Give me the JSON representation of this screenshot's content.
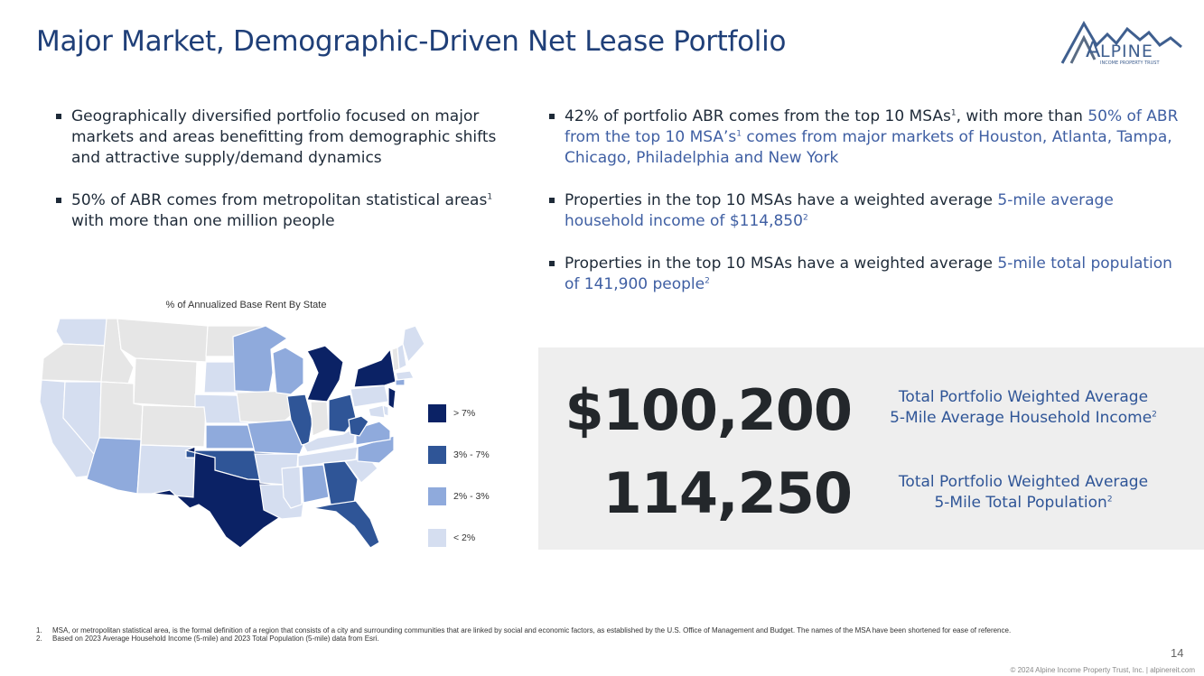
{
  "title": "Major Market, Demographic-Driven Net Lease Portfolio",
  "logo": {
    "mark": "A",
    "name": "LPINE",
    "tagline": "INCOME PROPERTY TRUST"
  },
  "left_bullets": [
    {
      "text": "Geographically diversified portfolio focused on major markets and areas benefitting from demographic shifts and attractive supply/demand dynamics"
    },
    {
      "pre": "50% of ABR comes from metropolitan statistical areas",
      "sup": "1",
      "post": " with more than one million people"
    }
  ],
  "right_bullets": [
    {
      "pre": "42% of portfolio ABR comes from the top 10 MSAs",
      "sup": "1",
      "mid": ", with more than ",
      "hl1": "50% of ABR from the top 10 MSA’s",
      "sup2": "1",
      "hl2": " comes from major markets of Houston, Atlanta, Tampa, Chicago, Philadelphia and New York"
    },
    {
      "pre": "Properties in the top 10 MSAs have a weighted average ",
      "hl": "5-mile average household income of $114,850",
      "sup": "2"
    },
    {
      "pre": "Properties in the top 10 MSAs have a weighted average ",
      "hl": "5-mile total population of 141,900 people",
      "sup": "2"
    }
  ],
  "map": {
    "title": "% of Annualized Base Rent By State",
    "legend": [
      {
        "label": "> 7%",
        "color": "#0b2265"
      },
      {
        "label": "3% - 7%",
        "color": "#2f5597"
      },
      {
        "label": "2% - 3%",
        "color": "#8faadc"
      },
      {
        "label": "< 2%",
        "color": "#d5def0"
      }
    ],
    "no_data_color": "#e6e6e6"
  },
  "stats": [
    {
      "value": "$100,200",
      "label_line1": "Total Portfolio Weighted Average",
      "label_line2": "5-Mile Average Household Income",
      "sup": "2"
    },
    {
      "value": "114,250",
      "label_line1": "Total Portfolio Weighted Average",
      "label_line2": "5-Mile Total Population",
      "sup": "2"
    }
  ],
  "footnotes": [
    {
      "num": "1.",
      "text": "MSA, or metropolitan statistical area, is the formal definition of a region that consists of a city and surrounding communities that are linked by social and economic factors, as established by the U.S. Office of Management and Budget. The names of the MSA have been shortened for ease of reference."
    },
    {
      "num": "2.",
      "text": "Based on 2023 Average Household Income (5-mile) and 2023 Total Population (5-mile) data from Esri."
    }
  ],
  "page_number": "14",
  "copyright": "© 2024 Alpine Income Property Trust, Inc.  |  alpinereit.com"
}
